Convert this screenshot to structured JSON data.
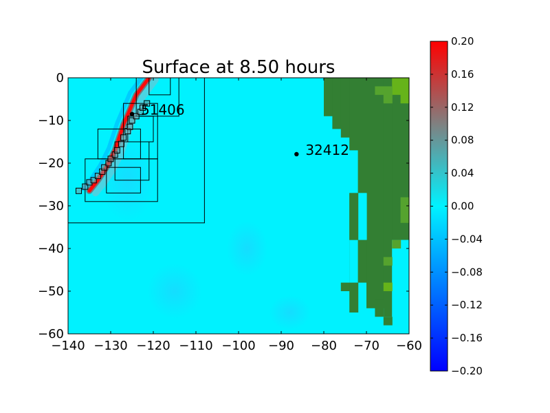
{
  "chart_data": {
    "type": "heatmap",
    "title": "Surface at 8.50 hours",
    "xlabel": "",
    "ylabel": "",
    "xlim": [
      -140,
      -60
    ],
    "ylim": [
      -60,
      0
    ],
    "x_ticks": [
      "−140",
      "−130",
      "−120",
      "−110",
      "−100",
      "−90",
      "−80",
      "−70",
      "−60"
    ],
    "y_ticks": [
      "0",
      "−10",
      "−20",
      "−30",
      "−40",
      "−50",
      "−60"
    ],
    "x_tick_values": [
      -140,
      -130,
      -120,
      -110,
      -100,
      -90,
      -80,
      -70,
      -60
    ],
    "y_tick_values": [
      0,
      -10,
      -20,
      -30,
      -40,
      -50,
      -60
    ],
    "background_color": "#00f2ff",
    "colors": {
      "ocean": "#00f2ff",
      "ocean_light": "#2ee6f5",
      "wave_crest": "#ff0a0a",
      "wave_trough": "#00b4ff",
      "land": "#337f33",
      "land_light": "#55a32e",
      "land_yellow": "#66b31a"
    },
    "gauges": [
      {
        "label": "51406",
        "x": -125.0,
        "y": -8.5
      },
      {
        "label": "32412",
        "x": -86.4,
        "y": -17.9
      }
    ],
    "wave_front": [
      [
        -121,
        0
      ],
      [
        -124,
        -4
      ],
      [
        -127,
        -11
      ],
      [
        -129,
        -17
      ],
      [
        -131,
        -21
      ],
      [
        -133,
        -24
      ],
      [
        -135,
        -26.5
      ]
    ],
    "amr_patches": [
      {
        "level": 2,
        "x": [
          -140,
          -108
        ],
        "y": [
          -34,
          0
        ]
      },
      {
        "level": 3,
        "x": [
          -136,
          -119
        ],
        "y": [
          -29,
          -19
        ]
      },
      {
        "level": 3,
        "x": [
          -133,
          -123
        ],
        "y": [
          -19,
          -12
        ]
      },
      {
        "level": 3,
        "x": [
          -127,
          -119
        ],
        "y": [
          -19,
          -6
        ]
      },
      {
        "level": 3,
        "x": [
          -124,
          -114
        ],
        "y": [
          -9,
          0
        ]
      },
      {
        "level": 3,
        "x": [
          -129,
          -121
        ],
        "y": [
          -24,
          -15
        ]
      },
      {
        "level": 3,
        "x": [
          -131,
          -123
        ],
        "y": [
          -27,
          -21
        ]
      },
      {
        "level": 3,
        "x": [
          -126,
          -120
        ],
        "y": [
          -15,
          -9
        ]
      },
      {
        "level": 3,
        "x": [
          -121,
          -116
        ],
        "y": [
          -4,
          0
        ]
      }
    ],
    "fine_patches": [
      [
        -137.5,
        -26.5
      ],
      [
        -136,
        -25.5
      ],
      [
        -135,
        -24.5
      ],
      [
        -134,
        -24
      ],
      [
        -133,
        -23
      ],
      [
        -132,
        -22
      ],
      [
        -131.5,
        -21
      ],
      [
        -130.5,
        -20
      ],
      [
        -130,
        -19
      ],
      [
        -129,
        -18
      ],
      [
        -128.5,
        -17
      ],
      [
        -127.5,
        -15.5
      ],
      [
        -127,
        -14
      ],
      [
        -126,
        -12.5
      ],
      [
        -125.5,
        -11.5
      ],
      [
        -125,
        -10
      ],
      [
        -124,
        -9
      ],
      [
        -123,
        -8
      ],
      [
        -122.5,
        -7
      ],
      [
        -121.5,
        -6
      ]
    ],
    "colorbar": {
      "ticks": [
        "0.20",
        "0.16",
        "0.12",
        "0.08",
        "0.04",
        "0.00",
        "−0.04",
        "−0.08",
        "−0.12",
        "−0.16",
        "−0.20"
      ],
      "min": -0.2,
      "max": 0.2,
      "stops": [
        "#0000ff",
        "#0078ff",
        "#00f2ff",
        "#808080",
        "#ff0000"
      ]
    }
  }
}
